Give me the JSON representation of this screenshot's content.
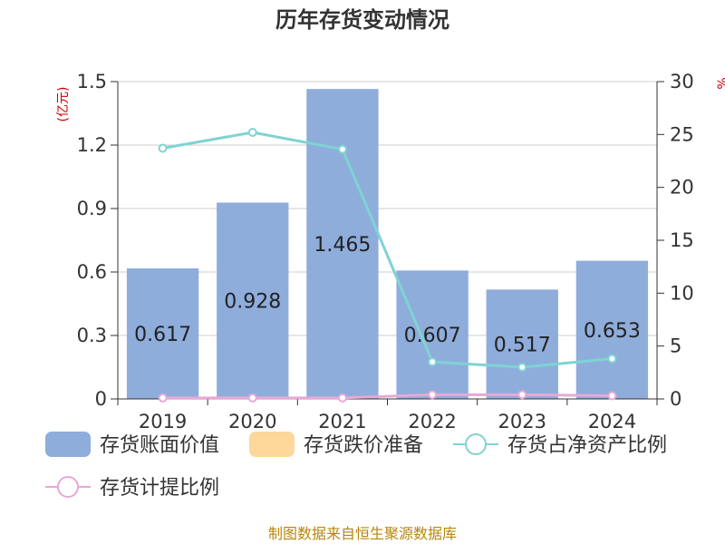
{
  "title": "历年存货变动情况",
  "source": "制图数据来自恒生聚源数据库",
  "chart_data": {
    "type": "bar",
    "title": "历年存货变动情况",
    "categories": [
      "2019",
      "2020",
      "2021",
      "2022",
      "2023",
      "2024"
    ],
    "left_axis": {
      "unit": "(亿元)",
      "ylim": [
        0,
        1.5
      ],
      "ticks": [
        "0",
        "0.3",
        "0.6",
        "0.9",
        "1.2",
        "1.5"
      ]
    },
    "right_axis": {
      "unit": "%",
      "ylim": [
        0,
        30
      ],
      "ticks": [
        "0",
        "5",
        "10",
        "15",
        "20",
        "25",
        "30"
      ]
    },
    "series": [
      {
        "name": "存货账面价值",
        "type": "bar",
        "axis": "left",
        "color": "#8eaddb",
        "values": [
          0.617,
          0.928,
          1.465,
          0.607,
          0.517,
          0.653
        ],
        "labels": [
          "0.617",
          "0.928",
          "1.465",
          "0.607",
          "0.517",
          "0.653"
        ]
      },
      {
        "name": "存货跌价准备",
        "type": "bar",
        "axis": "left",
        "color": "#fdd89a",
        "values": [
          0,
          0,
          0,
          0,
          0,
          0
        ]
      },
      {
        "name": "存货占净资产比例",
        "type": "line",
        "axis": "right",
        "color": "#7fd3d3",
        "values": [
          23.7,
          25.2,
          23.6,
          3.5,
          3.0,
          3.8
        ]
      },
      {
        "name": "存货计提比例",
        "type": "line",
        "axis": "right",
        "color": "#e6a9d6",
        "values": [
          0.1,
          0.1,
          0.1,
          0.4,
          0.4,
          0.3
        ]
      }
    ],
    "grid": true,
    "legend_position": "bottom"
  }
}
